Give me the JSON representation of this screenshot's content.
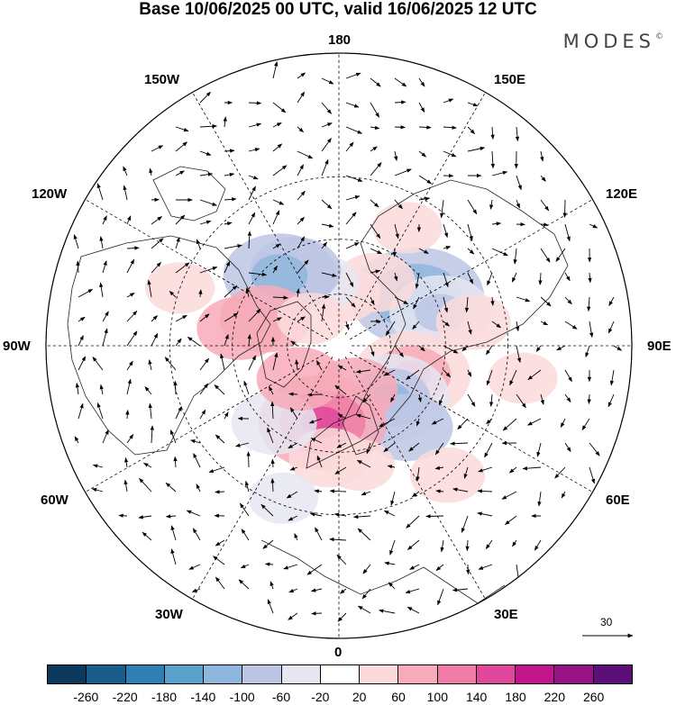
{
  "title": "Base 10/06/2025 00 UTC, valid 16/06/2025 12 UTC",
  "brand": "MODES",
  "brand_mark": "©",
  "longitude_labels": {
    "top": "180",
    "bottom": "0",
    "left": "90W",
    "right": "90E",
    "upper_left": "150W",
    "upper_right": "150E",
    "mid_left": "120W",
    "mid_right": "120E",
    "low_left": "60W",
    "low_right": "60E",
    "bottom_left": "30W",
    "bottom_right": "30E"
  },
  "reference_vector": {
    "value": "30"
  },
  "colorbar": {
    "colors": [
      "#0d3a5c",
      "#1b5d8a",
      "#2e7fb4",
      "#5aa1cc",
      "#8fb6dc",
      "#bcc6e4",
      "#e6e6f2",
      "#ffffff",
      "#fbdada",
      "#f7aab8",
      "#f07ba6",
      "#e1479b",
      "#c2178c",
      "#961285",
      "#5c0f78"
    ],
    "labels": [
      "-260",
      "-220",
      "-180",
      "-140",
      "-100",
      "-60",
      "-20",
      "20",
      "60",
      "100",
      "140",
      "180",
      "220",
      "260"
    ]
  },
  "anomalies": [
    {
      "lat": 55,
      "lon": 122,
      "value": -150
    },
    {
      "lat": 50,
      "lon": 108,
      "value": -90
    },
    {
      "lat": 62,
      "lon": 150,
      "value": 50
    },
    {
      "lat": 70,
      "lon": 175,
      "value": 40
    },
    {
      "lat": 65,
      "lon": -165,
      "value": -40
    },
    {
      "lat": 57,
      "lon": -150,
      "value": -70
    },
    {
      "lat": 55,
      "lon": -140,
      "value": -110
    },
    {
      "lat": 60,
      "lon": -110,
      "value": 70
    },
    {
      "lat": 52,
      "lon": -100,
      "value": 60
    },
    {
      "lat": 75,
      "lon": -135,
      "value": 30
    },
    {
      "lat": 60,
      "lon": 68,
      "value": 120
    },
    {
      "lat": 62,
      "lon": 45,
      "value": -120
    },
    {
      "lat": 50,
      "lon": 40,
      "value": -70
    },
    {
      "lat": 72,
      "lon": 20,
      "value": 60
    },
    {
      "lat": 60,
      "lon": -12,
      "value": 140
    },
    {
      "lat": 48,
      "lon": -5,
      "value": 50
    },
    {
      "lat": 52,
      "lon": -40,
      "value": -60
    },
    {
      "lat": 70,
      "lon": -50,
      "value": 60
    },
    {
      "lat": 45,
      "lon": 10,
      "value": 30
    },
    {
      "lat": 40,
      "lon": 100,
      "value": 40
    },
    {
      "lat": 30,
      "lon": 40,
      "value": 40
    },
    {
      "lat": 32,
      "lon": -20,
      "value": -30
    },
    {
      "lat": 30,
      "lon": -110,
      "value": 30
    },
    {
      "lat": 40,
      "lon": 150,
      "value": 30
    },
    {
      "lat": 25,
      "lon": 80,
      "value": 30
    }
  ]
}
